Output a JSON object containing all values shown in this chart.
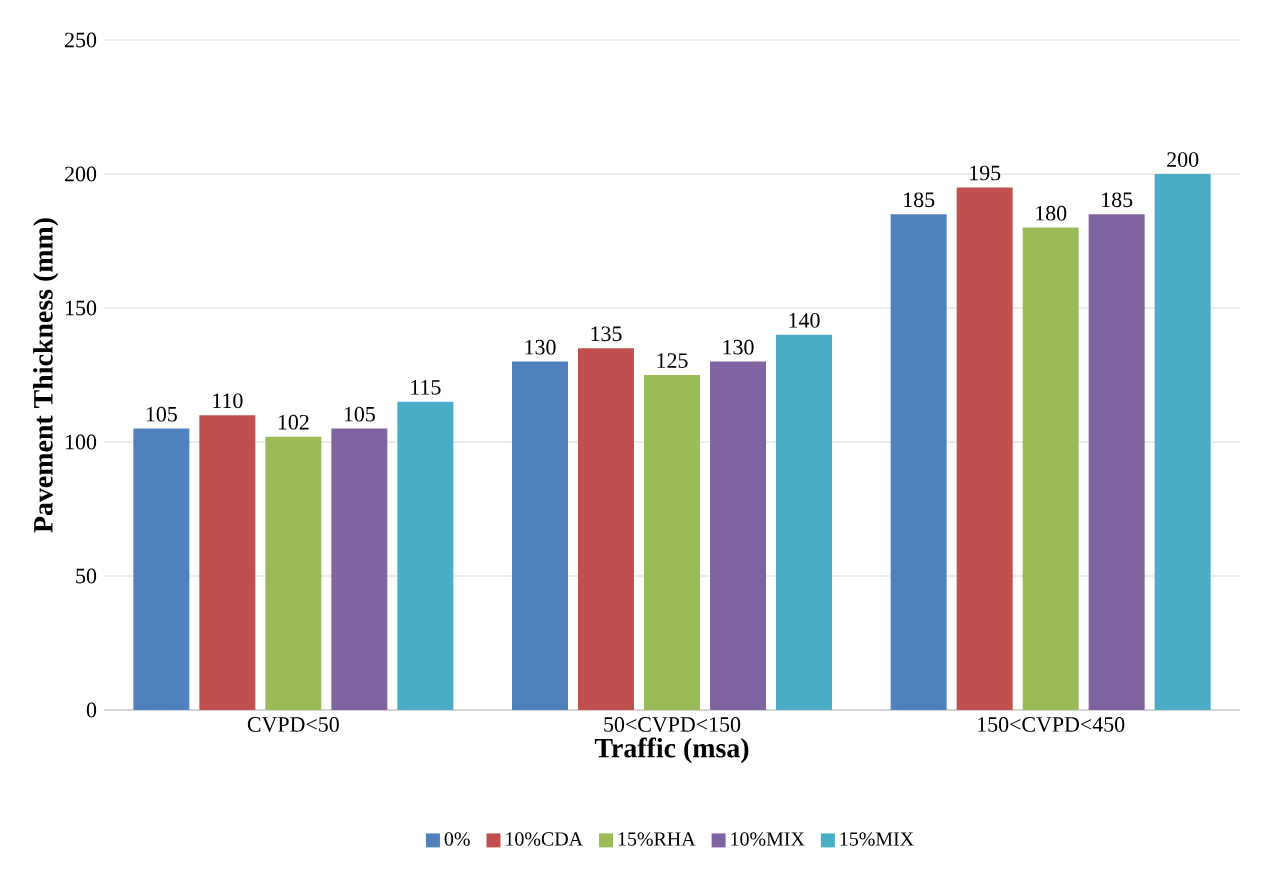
{
  "chart_data": {
    "type": "bar",
    "xlabel": "Traffic (msa)",
    "ylabel": "Pavement Thickness (mm)",
    "categories": [
      "CVPD<50",
      "50<CVPD<150",
      "150<CVPD<450"
    ],
    "series": [
      {
        "name": "0%",
        "color": "#4f81bd",
        "values": [
          105,
          130,
          185
        ]
      },
      {
        "name": "10%CDA",
        "color": "#c0504d",
        "values": [
          110,
          135,
          195
        ]
      },
      {
        "name": "15%RHA",
        "color": "#9bbb59",
        "values": [
          102,
          125,
          180
        ]
      },
      {
        "name": "10%MIX",
        "color": "#8064a2",
        "values": [
          105,
          130,
          185
        ]
      },
      {
        "name": "15%MIX",
        "color": "#4bacc6",
        "values": [
          115,
          140,
          200
        ]
      }
    ],
    "ylim": [
      0,
      250
    ],
    "yticks": [
      0,
      50,
      100,
      150,
      200,
      250
    ],
    "grid": "y",
    "legend": "bottom",
    "data_labels": true
  }
}
